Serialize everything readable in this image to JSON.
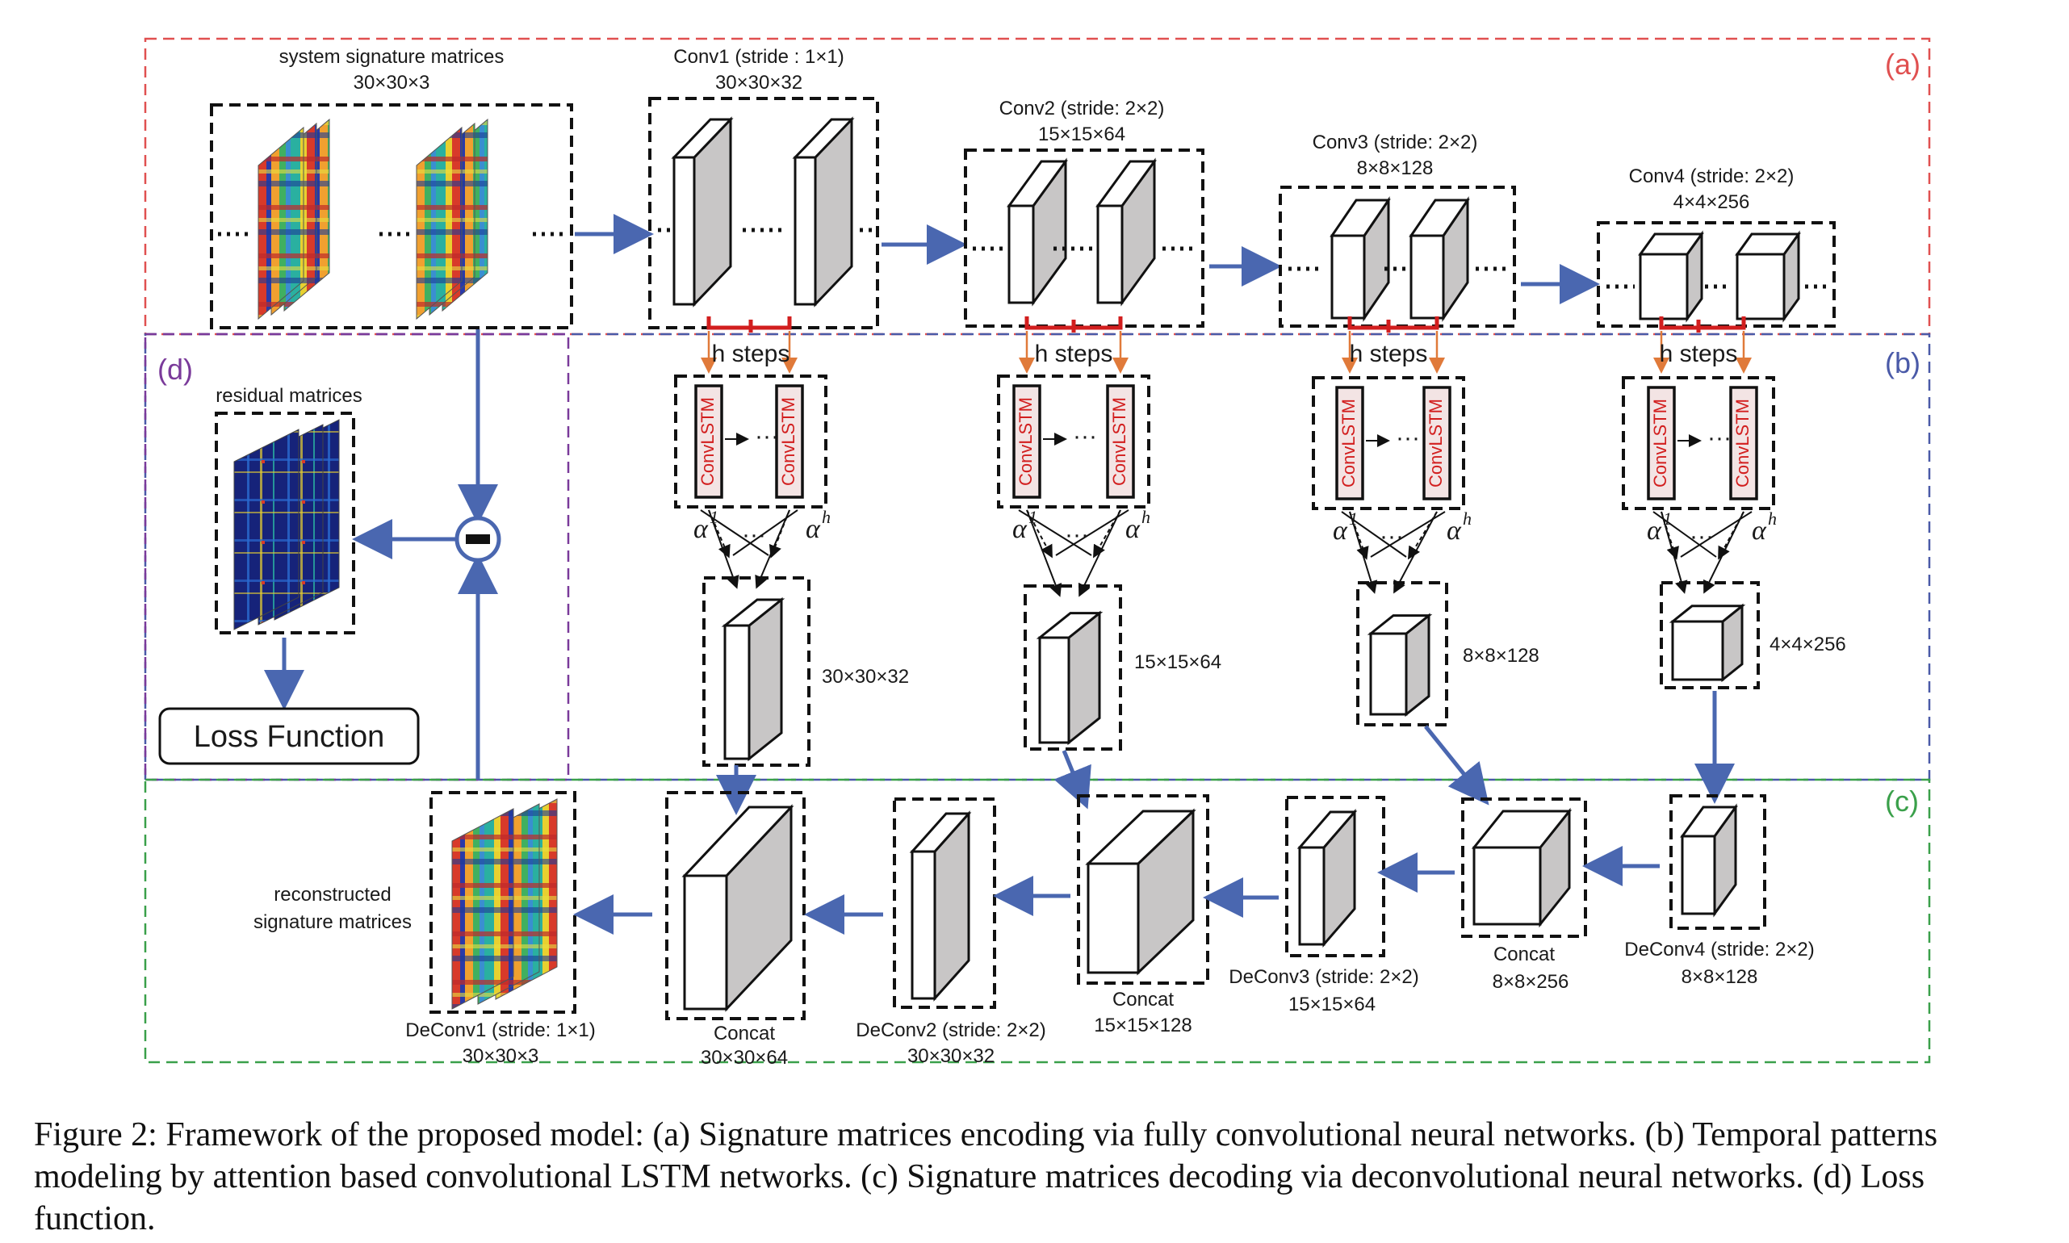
{
  "regions": {
    "a": {
      "tag": "(a)",
      "color": "#e05050"
    },
    "b": {
      "tag": "(b)",
      "color": "#4a5aa8"
    },
    "c": {
      "tag": "(c)",
      "color": "#3aa04a"
    },
    "d": {
      "tag": "(d)",
      "color": "#7a3a9a"
    }
  },
  "colors": {
    "arrow": "#4a67b0",
    "red": "#d21e1e",
    "orange": "#e07a3a",
    "face": "#c8c6c6"
  },
  "encoder": {
    "input": {
      "title": "system signature matrices",
      "dims": "30×30×3"
    },
    "conv1": {
      "title": "Conv1 (stride : 1×1)",
      "dims": "30×30×32"
    },
    "conv2": {
      "title": "Conv2 (stride: 2×2)",
      "dims": "15×15×64"
    },
    "conv3": {
      "title": "Conv3 (stride: 2×2)",
      "dims": "8×8×128"
    },
    "conv4": {
      "title": "Conv4 (stride: 2×2)",
      "dims": "4×4×256"
    }
  },
  "temporal": {
    "h_steps": "h steps",
    "cell": "ConvLSTM",
    "alpha": "α",
    "alpha_first": "1",
    "alpha_last": "h",
    "dots": "···",
    "outputs": [
      "30×30×32",
      "15×15×64",
      "8×8×128",
      "4×4×256"
    ]
  },
  "residual": {
    "title": "residual matrices",
    "loss": "Loss Function",
    "minus": "−"
  },
  "decoder": {
    "recon": {
      "line1": "reconstructed",
      "line2": "signature matrices"
    },
    "deconv1": {
      "title": "DeConv1 (stride: 1×1)",
      "dims": "30×30×3"
    },
    "concat1": {
      "title": "Concat",
      "dims": "30×30×64"
    },
    "deconv2": {
      "title": "DeConv2 (stride: 2×2)",
      "dims": "30×30×32"
    },
    "concat2": {
      "title": "Concat",
      "dims": "15×15×128"
    },
    "deconv3": {
      "title": "DeConv3 (stride: 2×2)",
      "dims": "15×15×64"
    },
    "concat3": {
      "title": "Concat",
      "dims": "8×8×256"
    },
    "deconv4": {
      "title": "DeConv4 (stride: 2×2)",
      "dims": "8×8×128"
    }
  },
  "caption": "Figure 2: Framework of the proposed model: (a) Signature matrices encoding via fully convolutional neural networks. (b) Temporal patterns modeling by attention based convolutional LSTM networks. (c) Signature matrices decoding via deconvolutional neural networks. (d) Loss function."
}
